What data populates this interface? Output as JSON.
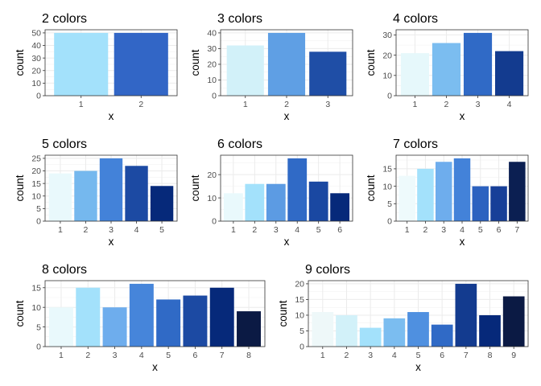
{
  "chart_data": [
    {
      "type": "bar",
      "title": "2 colors",
      "xlabel": "x",
      "ylabel": "count",
      "categories": [
        "1",
        "2"
      ],
      "values": [
        50,
        50
      ],
      "ylim": [
        0,
        52.5
      ],
      "yticks": [
        0,
        10,
        20,
        30,
        40,
        50
      ],
      "colors": [
        "#a3e1fb",
        "#3266c6"
      ],
      "grid": true
    },
    {
      "type": "bar",
      "title": "3 colors",
      "xlabel": "x",
      "ylabel": "count",
      "categories": [
        "1",
        "2",
        "3"
      ],
      "values": [
        32,
        40,
        28
      ],
      "ylim": [
        0,
        42
      ],
      "yticks": [
        0,
        10,
        20,
        30,
        40
      ],
      "colors": [
        "#d2f1f9",
        "#5f9fe4",
        "#1f4ea6"
      ],
      "grid": true
    },
    {
      "type": "bar",
      "title": "4 colors",
      "xlabel": "x",
      "ylabel": "count",
      "categories": [
        "1",
        "2",
        "3",
        "4"
      ],
      "values": [
        21,
        26,
        31,
        22
      ],
      "ylim": [
        0,
        32.55
      ],
      "yticks": [
        0,
        10,
        20,
        30
      ],
      "colors": [
        "#e6f8fb",
        "#7bbdf0",
        "#306ac6",
        "#133b8f"
      ],
      "grid": true
    },
    {
      "type": "bar",
      "title": "5 colors",
      "xlabel": "x",
      "ylabel": "count",
      "categories": [
        "1",
        "2",
        "3",
        "4",
        "5"
      ],
      "values": [
        19,
        20,
        25,
        22,
        14
      ],
      "ylim": [
        0,
        26.25
      ],
      "yticks": [
        0,
        5,
        10,
        15,
        20,
        25
      ],
      "colors": [
        "#e9f9fc",
        "#75b8ee",
        "#4382d9",
        "#1c4aa3",
        "#06297a"
      ],
      "grid": true
    },
    {
      "type": "bar",
      "title": "6 colors",
      "xlabel": "x",
      "ylabel": "count",
      "categories": [
        "1",
        "2",
        "3",
        "4",
        "5",
        "6"
      ],
      "values": [
        12,
        16,
        16,
        27,
        17,
        12
      ],
      "ylim": [
        0,
        28.35
      ],
      "yticks": [
        0,
        10,
        20
      ],
      "colors": [
        "#e9f9fc",
        "#a3e1fb",
        "#5c9be3",
        "#306ac6",
        "#1a48a2",
        "#06297a"
      ],
      "grid": true
    },
    {
      "type": "bar",
      "title": "7 colors",
      "xlabel": "x",
      "ylabel": "count",
      "categories": [
        "1",
        "2",
        "3",
        "4",
        "5",
        "6",
        "7"
      ],
      "values": [
        13,
        15,
        17,
        18,
        10,
        10,
        17
      ],
      "ylim": [
        0,
        18.9
      ],
      "yticks": [
        0,
        5,
        10,
        15
      ],
      "colors": [
        "#eefafc",
        "#a3e1fb",
        "#6eaded",
        "#4382d9",
        "#2c62c0",
        "#173f98",
        "#0b1f52"
      ],
      "grid": true
    },
    {
      "type": "bar",
      "title": "8 colors",
      "xlabel": "x",
      "ylabel": "count",
      "categories": [
        "1",
        "2",
        "3",
        "4",
        "5",
        "6",
        "7",
        "8"
      ],
      "values": [
        10,
        15,
        10,
        16,
        12,
        13,
        15,
        9
      ],
      "ylim": [
        0,
        16.8
      ],
      "yticks": [
        0,
        5,
        10,
        15
      ],
      "colors": [
        "#e9f9fc",
        "#a3e1fb",
        "#6eaded",
        "#4685da",
        "#306ac6",
        "#1c4aa3",
        "#06297a",
        "#0b1a44"
      ],
      "grid": true
    },
    {
      "type": "bar",
      "title": "9 colors",
      "xlabel": "x",
      "ylabel": "count",
      "categories": [
        "1",
        "2",
        "3",
        "4",
        "5",
        "6",
        "7",
        "8",
        "9"
      ],
      "values": [
        11,
        10,
        6,
        9,
        11,
        7,
        20,
        10,
        16
      ],
      "ylim": [
        0,
        21
      ],
      "yticks": [
        0,
        5,
        10,
        15,
        20
      ],
      "colors": [
        "#eef8f9",
        "#d2f1f9",
        "#a3e1fb",
        "#7bbdf0",
        "#4f90e0",
        "#306ac6",
        "#133b8f",
        "#06297a",
        "#0b1a44"
      ],
      "grid": true
    }
  ]
}
